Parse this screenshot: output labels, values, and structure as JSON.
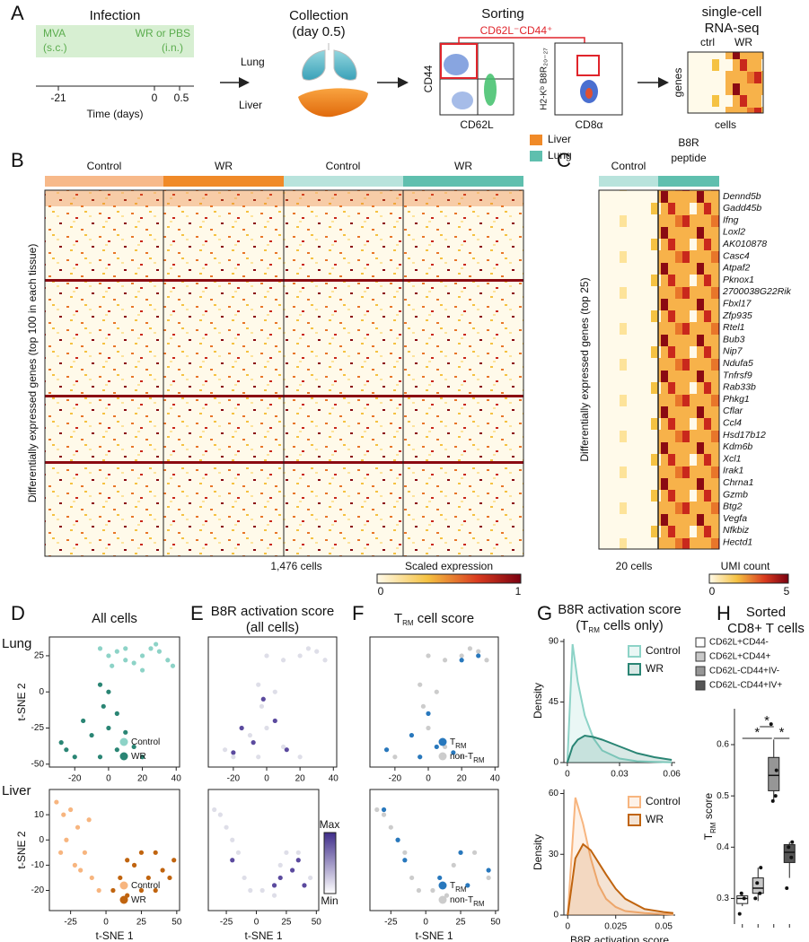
{
  "figure": {
    "panel_letters": [
      "A",
      "B",
      "C",
      "D",
      "E",
      "F",
      "G",
      "H"
    ],
    "row_labels": [
      "Lung",
      "Liver"
    ],
    "a": {
      "infection": "Infection",
      "mva": "MVA",
      "mva_route": "(s.c.)",
      "wr": "WR or PBS",
      "wr_route": "(i.n.)",
      "ticks": [
        -21,
        0,
        0.5
      ],
      "xlabel": "Time (days)",
      "collection": "Collection",
      "collection_day": "(day 0.5)",
      "lung": "Lung",
      "liver": "Liver",
      "sorting": "Sorting",
      "gate": "CD62L⁻CD44⁺",
      "cd44": "CD44",
      "cd62l": "CD62L",
      "h2kb": "H2-Kᵇ B8R₂₀₋₂₇",
      "cd8": "CD8α",
      "scrna_1": "single-cell",
      "scrna_2": "RNA-seq",
      "ctrl": "ctrl",
      "wr_col": "WR",
      "genes": "genes",
      "cells": "cells"
    },
    "b": {
      "groups": [
        "Control",
        "WR",
        "Control",
        "WR"
      ],
      "legend": [
        "Liver",
        "Lung"
      ],
      "ylabel": "Differentially expressed genes (top 100 in each tissue)",
      "cells": "1,476 cells",
      "scale_title": "Scaled expression",
      "scale_ticks": [
        0,
        1
      ]
    },
    "c": {
      "control": "Control",
      "peptide_1": "B8R",
      "peptide_2": "peptide",
      "genes": [
        "Dennd5b",
        "Gadd45b",
        "Ifng",
        "Loxl2",
        "AK010878",
        "Casc4",
        "Atpaf2",
        "Pknox1",
        "2700038G22Rik",
        "Fbxl17",
        "Zfp935",
        "Rtel1",
        "Bub3",
        "Nip7",
        "Ndufa5",
        "Tnfrsf9",
        "Rab33b",
        "Phkg1",
        "Cflar",
        "Ccl4",
        "Hsd17b12",
        "Kdm6b",
        "Xcl1",
        "Irak1",
        "Chrna1",
        "Gzmb",
        "Btg2",
        "Vegfa",
        "Nfkbiz",
        "Hectd1"
      ],
      "ylabel": "Differentially expressed genes (top 25)",
      "cells": "20 cells",
      "scale_title": "UMI count",
      "scale_ticks": [
        0,
        5
      ]
    }
  },
  "chart_data": [
    {
      "type": "scatter",
      "title": "All cells",
      "ylabel": "t-SNE 2",
      "xlim": [
        -35,
        42
      ],
      "ylim": [
        -52,
        38
      ],
      "xticks": [
        -20,
        0,
        20,
        40
      ],
      "yticks": [
        -50,
        -25,
        0,
        25
      ],
      "legend": "lower right",
      "series": [
        {
          "name": "Control",
          "color": "#8dd3c7",
          "x": [
            0,
            5,
            10,
            15,
            20,
            25,
            30,
            35,
            -5,
            10,
            38,
            20,
            28,
            2
          ],
          "y": [
            25,
            28,
            22,
            20,
            25,
            30,
            28,
            22,
            30,
            30,
            18,
            15,
            33,
            18
          ]
        },
        {
          "name": "WR",
          "color": "#2a8574",
          "x": [
            -5,
            0,
            -3,
            5,
            0,
            -10,
            -25,
            -20,
            -5,
            5,
            15,
            20,
            -28,
            10,
            -15
          ],
          "y": [
            5,
            0,
            -10,
            -15,
            -25,
            -30,
            -40,
            -45,
            -45,
            -40,
            -38,
            -45,
            -35,
            -28,
            -20
          ]
        }
      ]
    },
    {
      "type": "scatter",
      "ylabel": "t-SNE 2",
      "xlabel": "t-SNE 1",
      "xlim": [
        -40,
        52
      ],
      "ylim": [
        -28,
        20
      ],
      "xticks": [
        -25,
        0,
        25,
        50
      ],
      "yticks": [
        -20,
        -10,
        0,
        10
      ],
      "legend": "lower right",
      "series": [
        {
          "name": "Control",
          "color": "#f7b57f",
          "x": [
            -30,
            -25,
            -20,
            -28,
            -15,
            -22,
            -10,
            -5,
            -35,
            -12,
            -18,
            -32
          ],
          "y": [
            10,
            12,
            5,
            0,
            -5,
            -10,
            -15,
            -20,
            15,
            8,
            -12,
            -5
          ]
        },
        {
          "name": "WR",
          "color": "#c0640f",
          "x": [
            5,
            10,
            15,
            20,
            25,
            30,
            35,
            40,
            45,
            35,
            48,
            25,
            15
          ],
          "y": [
            -20,
            -15,
            -22,
            -10,
            -5,
            -15,
            -5,
            -12,
            -15,
            -20,
            -8,
            -20,
            -8
          ]
        }
      ]
    },
    {
      "type": "scatter",
      "title": "B8R activation score",
      "subtitle": "(all cells)",
      "xlim": [
        -35,
        42
      ],
      "ylim": [
        -52,
        38
      ],
      "xticks": [
        -20,
        0,
        20,
        40
      ],
      "series": [
        {
          "color": "#dedee8",
          "x": [
            0,
            10,
            20,
            30,
            35,
            -5,
            -3,
            0,
            -10,
            -25,
            -5,
            10,
            20,
            -20,
            5,
            25
          ],
          "y": [
            25,
            22,
            25,
            28,
            22,
            5,
            -10,
            -25,
            -30,
            -40,
            -45,
            -38,
            -45,
            -45,
            0,
            30
          ]
        },
        {
          "color": "#5b4a9e",
          "x": [
            -2,
            5,
            -8,
            -20,
            12,
            -15
          ],
          "y": [
            -5,
            -20,
            -35,
            -42,
            -40,
            -25
          ]
        }
      ]
    },
    {
      "type": "scatter",
      "xlabel": "t-SNE 1",
      "xlim": [
        -40,
        52
      ],
      "ylim": [
        -28,
        20
      ],
      "xticks": [
        -25,
        0,
        25,
        50
      ],
      "colorbar_max": "Max",
      "colorbar_min": "Min",
      "series": [
        {
          "color": "#dedee8",
          "x": [
            -30,
            -25,
            -20,
            -15,
            -10,
            -35,
            5,
            15,
            25,
            35,
            45,
            20,
            -5
          ],
          "y": [
            10,
            5,
            0,
            -5,
            -15,
            12,
            -20,
            -22,
            -5,
            -5,
            -15,
            -10,
            -20
          ]
        },
        {
          "color": "#5b4a9e",
          "x": [
            20,
            30,
            40,
            35,
            15,
            -20
          ],
          "y": [
            -15,
            -12,
            -18,
            -8,
            -18,
            -8
          ]
        }
      ]
    },
    {
      "type": "scatter",
      "title": "T",
      "title_sub": "RM",
      "title_rest": " cell score",
      "xlim": [
        -35,
        42
      ],
      "ylim": [
        -52,
        38
      ],
      "xticks": [
        -20,
        0,
        20,
        40
      ],
      "legend": "lower right",
      "series": [
        {
          "name": "T",
          "name_sub": "RM",
          "color": "#2878bd",
          "x": [
            -25,
            -10,
            0,
            5,
            15,
            30,
            -5,
            20
          ],
          "y": [
            -40,
            -30,
            -15,
            -38,
            -42,
            25,
            -45,
            22
          ]
        },
        {
          "name": "non-T",
          "name_sub": "RM",
          "color": "#cccccc",
          "x": [
            0,
            10,
            20,
            30,
            35,
            -5,
            -3,
            0,
            -10,
            -25,
            -5,
            10,
            20,
            -20,
            5,
            25
          ],
          "y": [
            25,
            22,
            25,
            28,
            22,
            5,
            -10,
            -25,
            -30,
            -40,
            -45,
            -38,
            -45,
            -45,
            0,
            30
          ]
        }
      ]
    },
    {
      "type": "scatter",
      "xlabel": "t-SNE 1",
      "xlim": [
        -40,
        52
      ],
      "ylim": [
        -28,
        20
      ],
      "xticks": [
        -25,
        0,
        25,
        50
      ],
      "legend": "lower right",
      "series": [
        {
          "name": "T",
          "name_sub": "RM",
          "color": "#2878bd",
          "x": [
            -30,
            -15,
            10,
            30,
            45,
            -20,
            25
          ],
          "y": [
            12,
            -8,
            -15,
            -18,
            -12,
            0,
            -5
          ]
        },
        {
          "name": "non-T",
          "name_sub": "RM",
          "color": "#cccccc",
          "x": [
            -30,
            -25,
            -20,
            -15,
            -10,
            -35,
            5,
            15,
            25,
            35,
            45,
            20,
            -5
          ],
          "y": [
            10,
            5,
            0,
            -5,
            -15,
            12,
            -20,
            -22,
            -5,
            -5,
            -15,
            -10,
            -20
          ]
        }
      ]
    },
    {
      "type": "area",
      "title": "B8R activation score",
      "subtitle": "(T",
      "subtitle_sub": "RM",
      "subtitle_rest": " cells only)",
      "ylabel": "Density",
      "x": [
        0,
        0.003,
        0.006,
        0.01,
        0.015,
        0.02,
        0.03,
        0.04,
        0.05,
        0.06
      ],
      "xlim": [
        -0.002,
        0.062
      ],
      "ylim": [
        0,
        92
      ],
      "xticks": [
        0,
        0.03,
        0.06
      ],
      "yticks": [
        0,
        45,
        90
      ],
      "legend": "upper right",
      "series": [
        {
          "name": "Control",
          "color": "#8dd3c7",
          "values": [
            0,
            88,
            60,
            35,
            18,
            9,
            3,
            1,
            0.5,
            0.2
          ]
        },
        {
          "name": "WR",
          "color": "#2a8574",
          "values": [
            0,
            12,
            17,
            20,
            19,
            17,
            12,
            7,
            4,
            2
          ]
        }
      ]
    },
    {
      "type": "area",
      "ylabel": "Density",
      "xlabel": "B8R activation score",
      "x": [
        0,
        0.004,
        0.008,
        0.012,
        0.016,
        0.02,
        0.025,
        0.03,
        0.04,
        0.05,
        0.055
      ],
      "xlim": [
        -0.002,
        0.056
      ],
      "ylim": [
        0,
        62
      ],
      "xticks": [
        0,
        0.025,
        0.05
      ],
      "yticks": [
        0,
        30,
        60
      ],
      "legend": "upper right",
      "series": [
        {
          "name": "Control",
          "color": "#f7b57f",
          "values": [
            0,
            58,
            45,
            28,
            15,
            8,
            4,
            2,
            1,
            0.5,
            0.3
          ]
        },
        {
          "name": "WR",
          "color": "#c0640f",
          "values": [
            0,
            28,
            35,
            32,
            26,
            20,
            13,
            8,
            3,
            1.5,
            1
          ]
        }
      ]
    },
    {
      "type": "box",
      "title": "Sorted",
      "subtitle": "CD8+ T cells",
      "ylabel": "T",
      "ylabel_sub": "RM",
      "ylabel_rest": " score",
      "categories": [
        "CD62L+CD44-",
        "CD62L+CD44+",
        "CD62L-CD44+IV-",
        "CD62L-CD44+IV+"
      ],
      "colors": [
        "#ffffff",
        "#c8c8c8",
        "#969696",
        "#555555"
      ],
      "ylim": [
        0.25,
        0.67
      ],
      "yticks": [
        0.3,
        0.4,
        0.5,
        0.6
      ],
      "legend": "upper left",
      "annotations": [
        "*",
        "*",
        "*"
      ],
      "boxes": [
        {
          "min": 0.285,
          "q1": 0.29,
          "median": 0.3,
          "q3": 0.305,
          "max": 0.31,
          "points": [
            0.27,
            0.3,
            0.31
          ]
        },
        {
          "min": 0.295,
          "q1": 0.31,
          "median": 0.32,
          "q3": 0.34,
          "max": 0.36,
          "points": [
            0.3,
            0.31,
            0.33,
            0.36
          ]
        },
        {
          "min": 0.49,
          "q1": 0.51,
          "median": 0.54,
          "q3": 0.575,
          "max": 0.61,
          "points": [
            0.64,
            0.5,
            0.49,
            0.55
          ]
        },
        {
          "min": 0.34,
          "q1": 0.37,
          "median": 0.39,
          "q3": 0.405,
          "max": 0.41,
          "points": [
            0.32,
            0.38,
            0.4,
            0.41
          ]
        }
      ]
    }
  ]
}
